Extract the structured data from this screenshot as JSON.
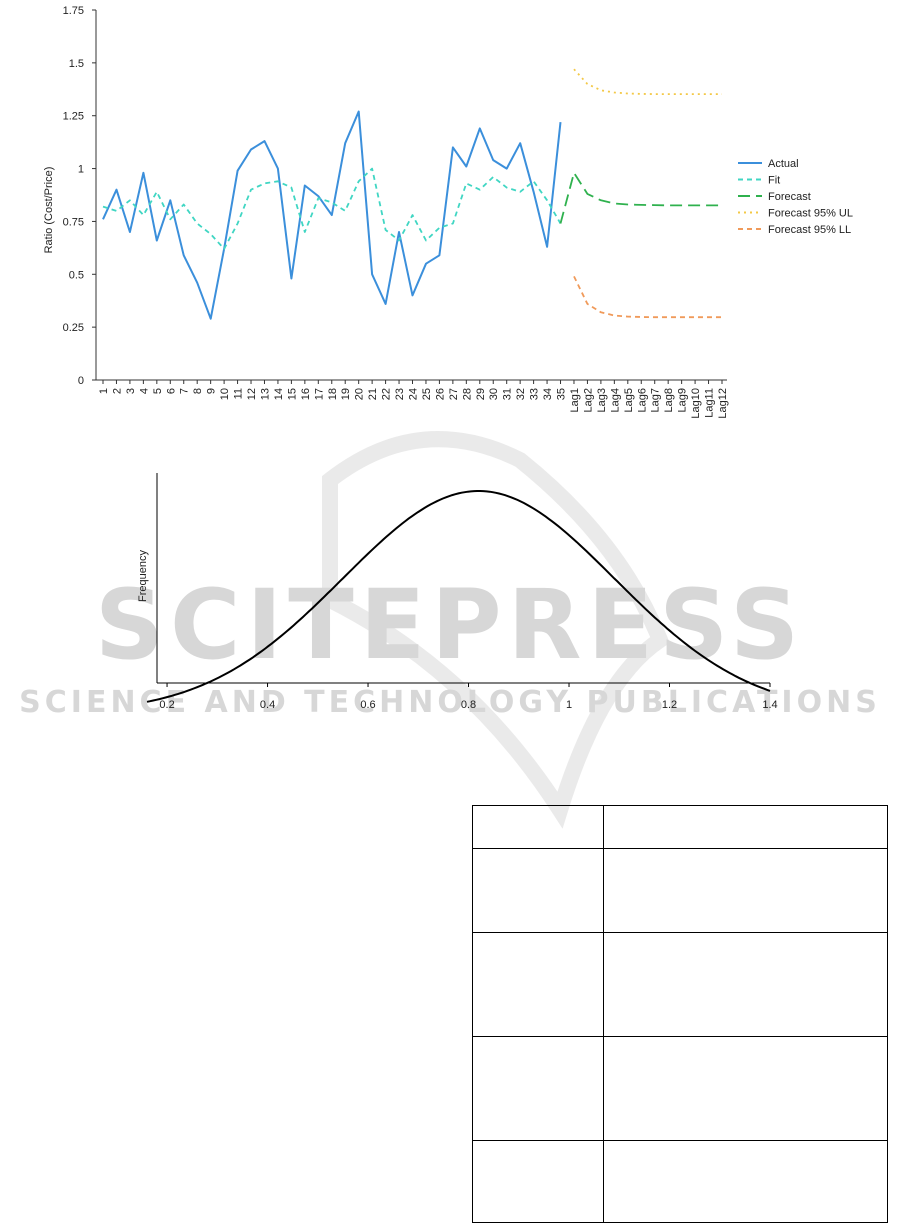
{
  "chart_data": [
    {
      "type": "line",
      "ylabel": "Ratio (Cost/Price)",
      "ylim": [
        0,
        1.75
      ],
      "yticks": [
        "0",
        "0.25",
        "0.5",
        "0.75",
        "1",
        "1.25",
        "1.5",
        "1.75"
      ],
      "categories": [
        "1",
        "2",
        "3",
        "4",
        "5",
        "6",
        "7",
        "8",
        "9",
        "10",
        "11",
        "12",
        "13",
        "14",
        "15",
        "16",
        "17",
        "18",
        "19",
        "20",
        "21",
        "22",
        "23",
        "24",
        "25",
        "26",
        "27",
        "28",
        "29",
        "30",
        "31",
        "32",
        "33",
        "34",
        "35",
        "Lag1",
        "Lag2",
        "Lag3",
        "Lag4",
        "Lag5",
        "Lag6",
        "Lag7",
        "Lag8",
        "Lag9",
        "Lag10",
        "Lag11",
        "Lag12"
      ],
      "grid": false,
      "legend_position": "right",
      "series": [
        {
          "name": "Actual",
          "color": "#3b8fdb",
          "style": "solid",
          "values": [
            0.76,
            0.9,
            0.7,
            0.98,
            0.66,
            0.85,
            0.59,
            0.46,
            0.29,
            0.62,
            0.99,
            1.09,
            1.13,
            1.0,
            0.48,
            0.92,
            0.87,
            0.78,
            1.12,
            1.27,
            0.5,
            0.36,
            0.7,
            0.4,
            0.55,
            0.59,
            1.1,
            1.01,
            1.19,
            1.04,
            1.0,
            1.12,
            0.89,
            0.63,
            1.22,
            null,
            null,
            null,
            null,
            null,
            null,
            null,
            null,
            null,
            null,
            null,
            null
          ]
        },
        {
          "name": "Fit",
          "color": "#40d6c3",
          "style": "dashed",
          "values": [
            0.82,
            0.8,
            0.85,
            0.78,
            0.89,
            0.76,
            0.83,
            0.74,
            0.69,
            0.62,
            0.74,
            0.9,
            0.93,
            0.94,
            0.91,
            0.7,
            0.86,
            0.84,
            0.8,
            0.94,
            1.0,
            0.71,
            0.66,
            0.78,
            0.66,
            0.72,
            0.74,
            0.93,
            0.9,
            0.96,
            0.91,
            0.89,
            0.94,
            0.85,
            0.74,
            null,
            null,
            null,
            null,
            null,
            null,
            null,
            null,
            null,
            null,
            null,
            null
          ]
        },
        {
          "name": "Forecast",
          "color": "#2fb14e",
          "style": "longdash",
          "values": [
            null,
            null,
            null,
            null,
            null,
            null,
            null,
            null,
            null,
            null,
            null,
            null,
            null,
            null,
            null,
            null,
            null,
            null,
            null,
            null,
            null,
            null,
            null,
            null,
            null,
            null,
            null,
            null,
            null,
            null,
            null,
            null,
            null,
            null,
            0.74,
            0.98,
            0.88,
            0.85,
            0.835,
            0.83,
            0.828,
            0.827,
            0.826,
            0.826,
            0.826,
            0.826,
            0.826
          ]
        },
        {
          "name": "Forecast 95% UL",
          "color": "#f3c846",
          "style": "dotted",
          "values": [
            null,
            null,
            null,
            null,
            null,
            null,
            null,
            null,
            null,
            null,
            null,
            null,
            null,
            null,
            null,
            null,
            null,
            null,
            null,
            null,
            null,
            null,
            null,
            null,
            null,
            null,
            null,
            null,
            null,
            null,
            null,
            null,
            null,
            null,
            null,
            1.47,
            1.4,
            1.37,
            1.36,
            1.355,
            1.353,
            1.352,
            1.352,
            1.352,
            1.352,
            1.352,
            1.352
          ]
        },
        {
          "name": "Forecast 95% LL",
          "color": "#f09a5a",
          "style": "dashed",
          "values": [
            null,
            null,
            null,
            null,
            null,
            null,
            null,
            null,
            null,
            null,
            null,
            null,
            null,
            null,
            null,
            null,
            null,
            null,
            null,
            null,
            null,
            null,
            null,
            null,
            null,
            null,
            null,
            null,
            null,
            null,
            null,
            null,
            null,
            null,
            null,
            0.49,
            0.36,
            0.32,
            0.305,
            0.3,
            0.298,
            0.297,
            0.297,
            0.297,
            0.297,
            0.297,
            0.297
          ]
        }
      ]
    },
    {
      "type": "line",
      "ylabel": "Frequency",
      "xlim": [
        0.18,
        1.4
      ],
      "xticks": [
        "0.2",
        "0.4",
        "0.6",
        "0.8",
        "1",
        "1.2",
        "1.4"
      ],
      "grid": false,
      "curve": {
        "shape": "normal",
        "mean": 0.82,
        "sd": 0.27,
        "color": "#000000"
      }
    }
  ],
  "watermark": {
    "line1": "SCITEPRESS",
    "line2": "SCIENCE AND TECHNOLOGY PUBLICATIONS"
  },
  "table": {
    "rows": [
      [
        "",
        ""
      ],
      [
        "",
        ""
      ],
      [
        "",
        ""
      ],
      [
        "",
        ""
      ],
      [
        "",
        ""
      ]
    ]
  }
}
